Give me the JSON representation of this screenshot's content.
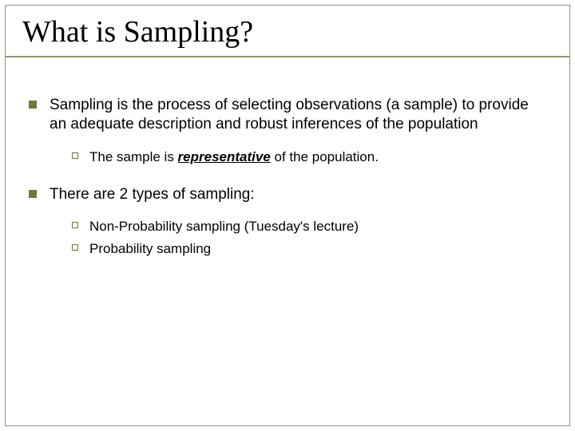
{
  "slide": {
    "title": "What is Sampling?",
    "title_font": "Times New Roman",
    "title_fontsize": 38,
    "title_color": "#000000",
    "body_font": "Arial",
    "body_fontsize_lvl1": 19,
    "body_fontsize_lvl2": 17,
    "bullet_color": "#6b7a3a",
    "frame_color": "#9e8f6f",
    "background_color": "#ffffff",
    "items": [
      {
        "text": "Sampling is the process of selecting observations (a sample) to provide an adequate description and robust inferences of the population",
        "sub": [
          {
            "prefix": "The sample is ",
            "keyword": "representative",
            "suffix": " of the population."
          }
        ]
      },
      {
        "text": "There are 2 types of sampling:",
        "sub": [
          {
            "prefix": "Non-Probability sampling (Tuesday's lecture)",
            "keyword": "",
            "suffix": ""
          },
          {
            "prefix": "Probability sampling",
            "keyword": "",
            "suffix": ""
          }
        ]
      }
    ]
  }
}
